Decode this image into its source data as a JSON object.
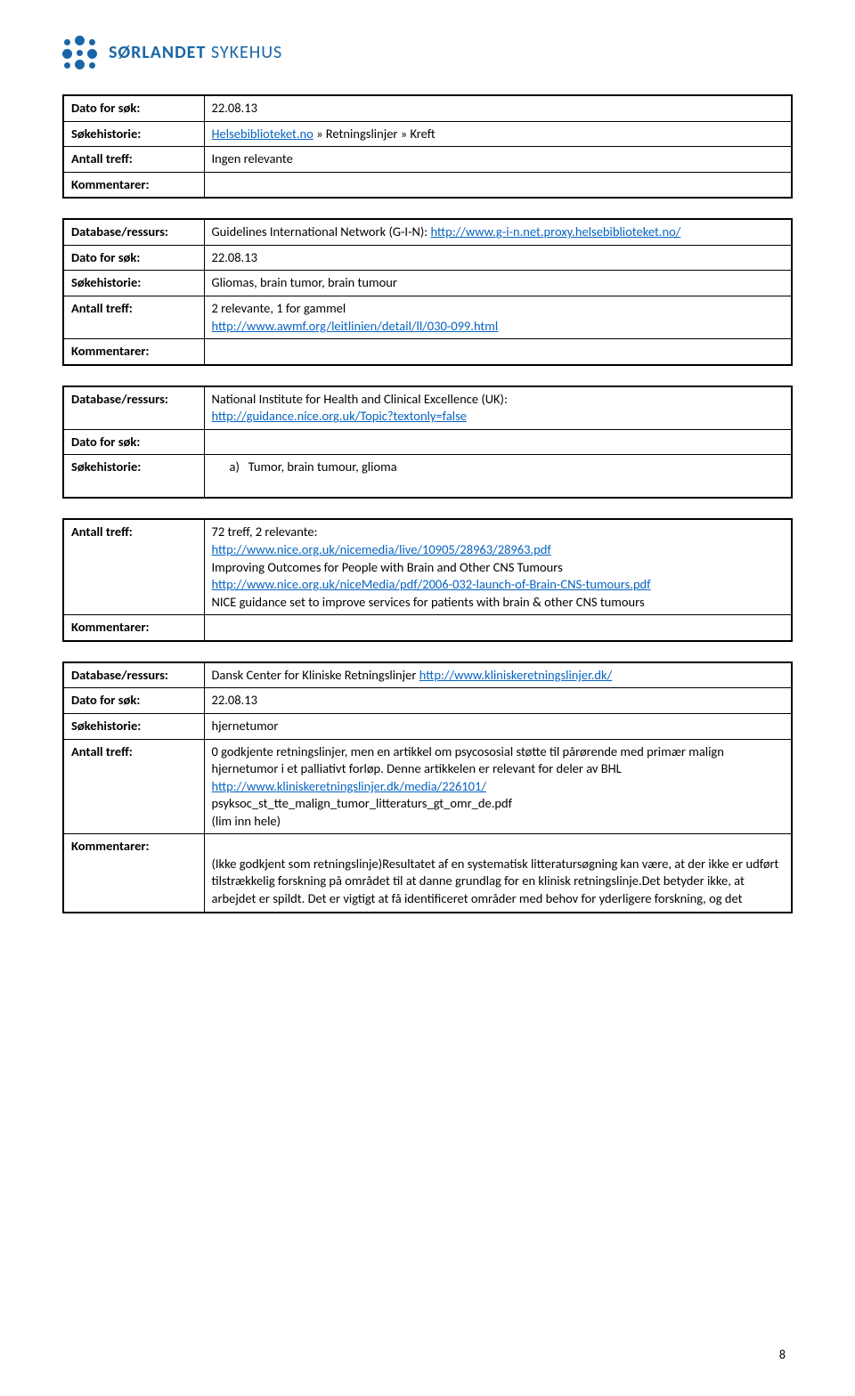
{
  "logo": {
    "name_part1": "SØRLANDET",
    "name_part2": " SYKEHUS"
  },
  "labels": {
    "dato": "Dato for søk:",
    "soke": "Søkehistorie:",
    "antall": "Antall treff:",
    "kommentar": "Kommentarer:",
    "database": "Database/ressurs:"
  },
  "t1": {
    "dato": "22.08.13",
    "soke_link": "Helsebiblioteket.no",
    "soke_rest": " » Retningslinjer » Kreft",
    "antall": "Ingen relevante"
  },
  "t2": {
    "db_pre": "Guidelines International Network (G-I-N): ",
    "db_link": "http://www.g-i-n.net.proxy.helsebiblioteket.no/",
    "dato": "22.08.13",
    "soke": "Gliomas, brain tumor, brain tumour",
    "antall_pre": "2 relevante, 1 for gammel",
    "antall_link": "http://www.awmf.org/leitlinien/detail/ll/030-099.html"
  },
  "t3": {
    "db_pre": "National Institute for Health and Clinical Excellence (UK): ",
    "db_link": "http://guidance.nice.org.uk/Topic?textonly=false",
    "soke_bullet": "a)",
    "soke_text": "Tumor, brain tumour, glioma"
  },
  "t4": {
    "line1": "72 treff, 2 relevante:",
    "link1": "http://www.nice.org.uk/nicemedia/live/10905/28963/28963.pdf",
    "line2": "Improving Outcomes for People with Brain and Other CNS Tumours",
    "link2": "http://www.nice.org.uk/niceMedia/pdf/2006-032-launch-of-Brain-CNS-tumours.pdf",
    "line3": "NICE guidance set to improve services for patients with brain & other CNS tumours"
  },
  "t5": {
    "db_pre": "Dansk Center for Kliniske Retningslinjer ",
    "db_link": "http://www.kliniskeretningslinjer.dk/",
    "dato": "22.08.13",
    "soke": "hjernetumor",
    "antall_p1": "0 godkjente retningslinjer, men en artikkel om psycososial støtte til pårørende med primær malign hjernetumor i et palliativt forløp. Denne artikkelen er relevant for deler av BHL",
    "antall_link": "http://www.kliniskeretningslinjer.dk/media/226101/",
    "antall_p2": "psyksoc_st_tte_malign_tumor_litteraturs_gt_omr_de.pdf",
    "antall_p3": "(lim inn hele)",
    "kom": "(Ikke godkjent som retningslinje)Resultatet af en systematisk litteratursøgning kan være, at der ikke er udført tilstrækkelig forskning på området til at danne grundlag for en klinisk retningslinje.Det betyder ikke, at arbejdet er spildt. Det er vigtigt at få identificeret områder med behov for yderligere forskning, og det"
  },
  "page_number": "8"
}
